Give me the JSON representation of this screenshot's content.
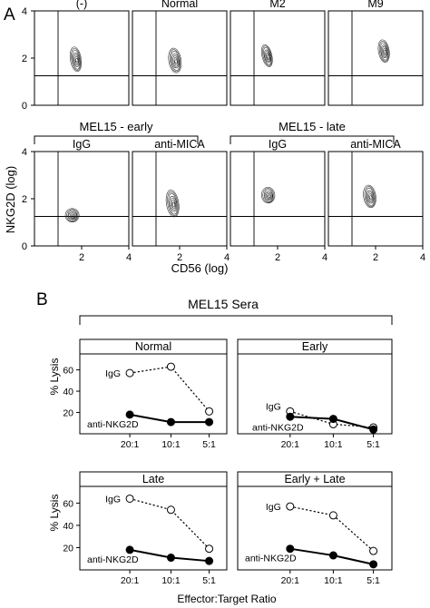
{
  "panel_a": {
    "letter": "A",
    "y_axis_label": "NKG2D (log)",
    "x_axis_label": "CD56 (log)",
    "group_labels": [
      "MEL15 - early",
      "MEL15 - late"
    ],
    "plots": [
      {
        "label": "(-)",
        "center": [
          1.75,
          1.95
        ],
        "spread": [
          0.22,
          0.55
        ],
        "tilt": 0.2
      },
      {
        "label": "Normal",
        "center": [
          1.8,
          1.9
        ],
        "spread": [
          0.25,
          0.55
        ],
        "tilt": 0.2
      },
      {
        "label": "M2",
        "center": [
          1.55,
          2.1
        ],
        "spread": [
          0.2,
          0.5
        ],
        "tilt": 0.3
      },
      {
        "label": "M9",
        "center": [
          2.35,
          2.3
        ],
        "spread": [
          0.22,
          0.5
        ],
        "tilt": 0.2
      },
      {
        "label": "IgG",
        "center": [
          1.6,
          1.3
        ],
        "spread": [
          0.28,
          0.3
        ],
        "tilt": 0.0
      },
      {
        "label": "anti-MICA",
        "center": [
          1.7,
          1.8
        ],
        "spread": [
          0.25,
          0.6
        ],
        "tilt": 0.2
      },
      {
        "label": "IgG",
        "center": [
          1.6,
          2.15
        ],
        "spread": [
          0.27,
          0.35
        ],
        "tilt": 0.1
      },
      {
        "label": "anti-MICA",
        "center": [
          1.75,
          2.1
        ],
        "spread": [
          0.25,
          0.5
        ],
        "tilt": 0.2
      }
    ],
    "axis": {
      "xlim": [
        0,
        4
      ],
      "ylim": [
        0,
        4
      ],
      "xticks": [
        "2",
        "4"
      ],
      "yticks": [
        "0",
        "2",
        "4"
      ],
      "gate_x": 1.0,
      "gate_y": 1.25
    }
  },
  "panel_b": {
    "letter": "B",
    "title": "MEL15 Sera",
    "y_axis_label": "% Lysis",
    "x_axis_label": "Effector:Target Ratio",
    "x_categories": [
      "20:1",
      "10:1",
      "5:1"
    ],
    "y_ticks": [
      "20",
      "40",
      "60"
    ],
    "ylim": [
      0,
      75
    ]
  },
  "chart_data": {
    "type": "line",
    "categories": [
      "20:1",
      "10:1",
      "5:1"
    ],
    "ylabel": "% Lysis",
    "xlabel": "Effector:Target Ratio",
    "ylim": [
      0,
      75
    ],
    "panels": [
      {
        "title": "Normal",
        "series": [
          {
            "name": "IgG",
            "values": [
              57,
              63,
              21
            ],
            "style": "dashed-open"
          },
          {
            "name": "anti-NKG2D",
            "values": [
              18,
              11,
              11
            ],
            "style": "solid-filled"
          }
        ]
      },
      {
        "title": "Early",
        "series": [
          {
            "name": "IgG",
            "values": [
              21,
              9,
              6
            ],
            "style": "dashed-open"
          },
          {
            "name": "anti-NKG2D",
            "values": [
              16,
              14,
              4
            ],
            "style": "solid-filled"
          }
        ]
      },
      {
        "title": "Late",
        "series": [
          {
            "name": "IgG",
            "values": [
              64,
              54,
              19
            ],
            "style": "dashed-open"
          },
          {
            "name": "anti-NKG2D",
            "values": [
              18,
              11,
              8
            ],
            "style": "solid-filled"
          }
        ]
      },
      {
        "title": "Early + Late",
        "series": [
          {
            "name": "IgG",
            "values": [
              57,
              49,
              17
            ],
            "style": "dashed-open"
          },
          {
            "name": "anti-NKG2D",
            "values": [
              19,
              13,
              5
            ],
            "style": "solid-filled"
          }
        ]
      }
    ]
  }
}
